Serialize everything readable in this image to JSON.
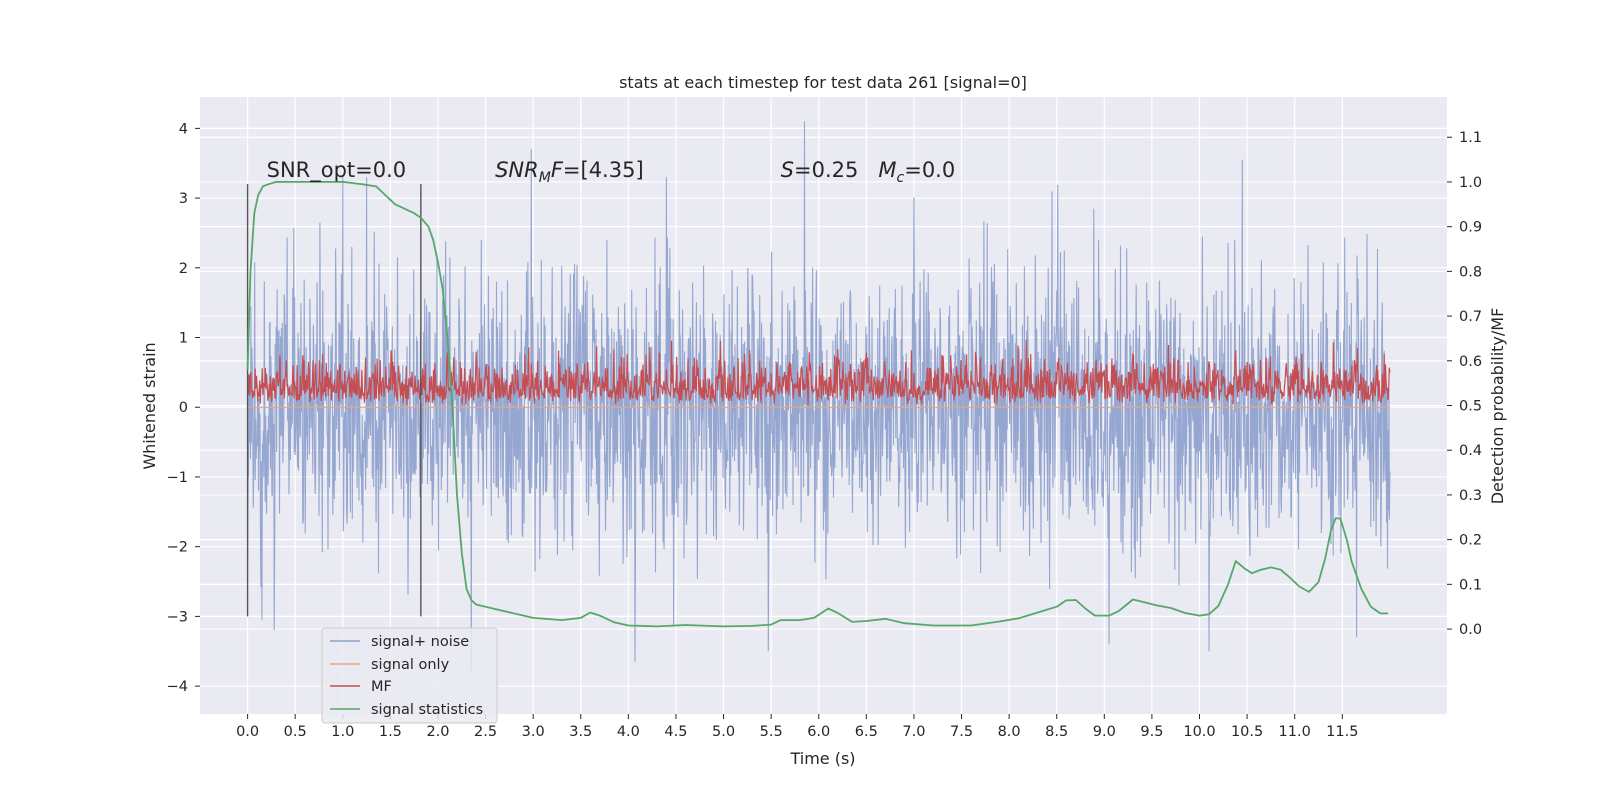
{
  "chart_data": {
    "type": "line",
    "title": "stats at each timestep for test data 261 [signal=0]",
    "xlabel": "Time (s)",
    "ylabel": "Whitened strain",
    "y2label": "Detection probability/MF",
    "xlim": [
      -0.5,
      12.6
    ],
    "ylim": [
      -4.4,
      4.45
    ],
    "y2lim": [
      -0.19,
      1.19
    ],
    "xticks": [
      0.0,
      0.5,
      1.0,
      1.5,
      2.0,
      2.5,
      3.0,
      3.5,
      4.0,
      4.5,
      5.0,
      5.5,
      6.0,
      6.5,
      7.0,
      7.5,
      8.0,
      8.5,
      9.0,
      9.5,
      10.0,
      10.5,
      11.0,
      11.5
    ],
    "xtick_labels": [
      "0.0",
      "0.5",
      "1.0",
      "1.5",
      "2.0",
      "2.5",
      "3.0",
      "3.5",
      "4.0",
      "4.5",
      "5.0",
      "5.5",
      "6.0",
      "6.5",
      "7.0",
      "7.5",
      "8.0",
      "8.5",
      "9.0",
      "9.5",
      "10.0",
      "10.5",
      "11.0",
      "11.5"
    ],
    "yticks": [
      -4,
      -3,
      -2,
      -1,
      0,
      1,
      2,
      3,
      4
    ],
    "ytick_labels": [
      "−4",
      "−3",
      "−2",
      "−1",
      "0",
      "1",
      "2",
      "3",
      "4"
    ],
    "y2ticks": [
      0.0,
      0.1,
      0.2,
      0.3,
      0.4,
      0.5,
      0.6,
      0.7,
      0.8,
      0.9,
      1.0,
      1.1
    ],
    "y2tick_labels": [
      "0.0",
      "0.1",
      "0.2",
      "0.3",
      "0.4",
      "0.5",
      "0.6",
      "0.7",
      "0.8",
      "0.9",
      "1.0",
      "1.1"
    ],
    "grid": true,
    "legend_position": "lower-left",
    "annotations": [
      {
        "text": "SNR_opt=0.0",
        "x": 0.2,
        "y": 3.3
      },
      {
        "text": "SNR_MF=[4.35]",
        "x": 2.6,
        "y": 3.3
      },
      {
        "text": "S=0.25   M_c=0.0",
        "x": 5.6,
        "y": 3.3
      }
    ],
    "vlines": [
      {
        "x": 0.0,
        "ymin": -3.0,
        "ymax": 3.2
      },
      {
        "x": 1.82,
        "ymin": -3.0,
        "ymax": 3.2
      }
    ],
    "series": [
      {
        "name": "signal+ noise",
        "axis": "left",
        "color": "#8c9fcc",
        "x_range": [
          0.0,
          12.0
        ],
        "envelope_core": [
          -1.8,
          1.8
        ],
        "notable_peaks": [
          {
            "x": 1.0,
            "y": 3.3
          },
          {
            "x": 2.98,
            "y": 3.7
          },
          {
            "x": 5.85,
            "y": 4.1
          },
          {
            "x": 10.45,
            "y": 3.55
          },
          {
            "x": 1.25,
            "y": 3.3
          },
          {
            "x": 4.4,
            "y": 3.3
          }
        ],
        "notable_troughs": [
          {
            "x": 0.28,
            "y": -3.2
          },
          {
            "x": 2.35,
            "y": -3.8
          },
          {
            "x": 4.07,
            "y": -3.65
          },
          {
            "x": 5.47,
            "y": -3.5
          },
          {
            "x": 9.05,
            "y": -3.4
          },
          {
            "x": 10.1,
            "y": -3.5
          },
          {
            "x": 11.65,
            "y": -3.3
          }
        ]
      },
      {
        "name": "signal only",
        "axis": "left",
        "color": "#e8a585",
        "x": [
          0.0,
          12.0
        ],
        "y": [
          0.0,
          0.0
        ]
      },
      {
        "name": "MF",
        "axis": "right",
        "color": "#c44e52",
        "x_range": [
          0.0,
          12.0
        ],
        "baseline": 0.5,
        "typical_range": [
          0.5,
          0.6
        ],
        "max": 0.65
      },
      {
        "name": "signal statistics",
        "axis": "right",
        "color": "#55a868",
        "x": [
          0.0,
          0.03,
          0.07,
          0.11,
          0.16,
          0.22,
          0.3,
          0.45,
          0.7,
          1.0,
          1.2,
          1.35,
          1.45,
          1.55,
          1.65,
          1.75,
          1.82,
          1.9,
          1.95,
          2.0,
          2.05,
          2.1,
          2.15,
          2.2,
          2.25,
          2.3,
          2.35,
          2.4,
          2.5,
          2.7,
          3.0,
          3.3,
          3.5,
          3.6,
          3.7,
          3.85,
          4.0,
          4.3,
          4.6,
          5.0,
          5.3,
          5.5,
          5.6,
          5.8,
          5.95,
          6.1,
          6.2,
          6.35,
          6.5,
          6.7,
          6.9,
          7.2,
          7.6,
          7.9,
          8.1,
          8.3,
          8.5,
          8.6,
          8.7,
          8.8,
          8.9,
          9.05,
          9.15,
          9.3,
          9.4,
          9.55,
          9.7,
          9.85,
          10.0,
          10.1,
          10.2,
          10.3,
          10.38,
          10.47,
          10.55,
          10.65,
          10.75,
          10.85,
          10.95,
          11.05,
          11.15,
          11.25,
          11.32,
          11.38,
          11.43,
          11.48,
          11.55,
          11.6,
          11.7,
          11.8,
          11.9,
          11.98
        ],
        "y": [
          0.58,
          0.8,
          0.93,
          0.97,
          0.99,
          0.995,
          1.0,
          1.0,
          1.0,
          1.0,
          0.995,
          0.99,
          0.97,
          0.95,
          0.94,
          0.93,
          0.92,
          0.9,
          0.87,
          0.82,
          0.76,
          0.65,
          0.5,
          0.3,
          0.17,
          0.09,
          0.065,
          0.055,
          0.05,
          0.04,
          0.025,
          0.02,
          0.025,
          0.037,
          0.03,
          0.015,
          0.008,
          0.006,
          0.009,
          0.006,
          0.007,
          0.01,
          0.02,
          0.02,
          0.025,
          0.046,
          0.036,
          0.016,
          0.018,
          0.023,
          0.013,
          0.008,
          0.008,
          0.017,
          0.024,
          0.037,
          0.05,
          0.064,
          0.065,
          0.046,
          0.03,
          0.03,
          0.04,
          0.066,
          0.061,
          0.053,
          0.047,
          0.036,
          0.03,
          0.033,
          0.052,
          0.1,
          0.152,
          0.136,
          0.125,
          0.133,
          0.138,
          0.133,
          0.115,
          0.095,
          0.083,
          0.105,
          0.158,
          0.22,
          0.248,
          0.247,
          0.198,
          0.15,
          0.09,
          0.05,
          0.035,
          0.035
        ]
      }
    ]
  }
}
